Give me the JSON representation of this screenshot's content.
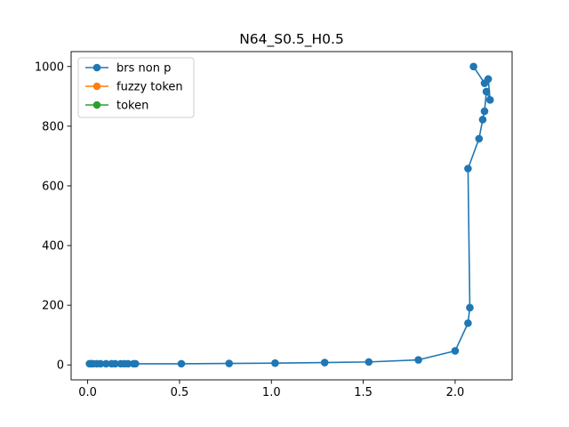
{
  "chart_data": {
    "type": "line",
    "title": "N64_S0.5_H0.5",
    "xlabel": "",
    "ylabel": "",
    "xlim": [
      -0.09,
      2.31
    ],
    "ylim": [
      -50,
      1050
    ],
    "xticks": [
      0.0,
      0.5,
      1.0,
      1.5,
      2.0
    ],
    "xtick_labels": [
      "0.0",
      "0.5",
      "1.0",
      "1.5",
      "2.0"
    ],
    "yticks": [
      0,
      200,
      400,
      600,
      800,
      1000
    ],
    "ytick_labels": [
      "0",
      "200",
      "400",
      "600",
      "800",
      "1000"
    ],
    "grid": false,
    "legend_position": "upper left",
    "series": [
      {
        "name": "brs non p",
        "color": "#1f77b4",
        "marker": "circle",
        "x": [
          0.01,
          0.015,
          0.02,
          0.03,
          0.05,
          0.07,
          0.1,
          0.13,
          0.15,
          0.18,
          0.2,
          0.22,
          0.25,
          0.26,
          0.51,
          0.77,
          1.02,
          1.29,
          1.53,
          1.8,
          2.0,
          2.07,
          2.08,
          2.07,
          2.13,
          2.15,
          2.16,
          2.17,
          2.19,
          2.18,
          2.16,
          2.1
        ],
        "y": [
          4,
          4,
          4,
          4,
          4,
          4,
          4,
          4,
          4,
          4,
          4,
          4,
          4,
          4,
          4,
          5,
          6,
          8,
          10,
          17,
          47,
          140,
          192,
          658,
          758,
          822,
          850,
          916,
          888,
          958,
          944,
          1000
        ]
      },
      {
        "name": "fuzzy token",
        "color": "#ff7f0e",
        "marker": "circle",
        "x": [],
        "y": []
      },
      {
        "name": "token",
        "color": "#2ca02c",
        "marker": "circle",
        "x": [],
        "y": []
      }
    ]
  }
}
